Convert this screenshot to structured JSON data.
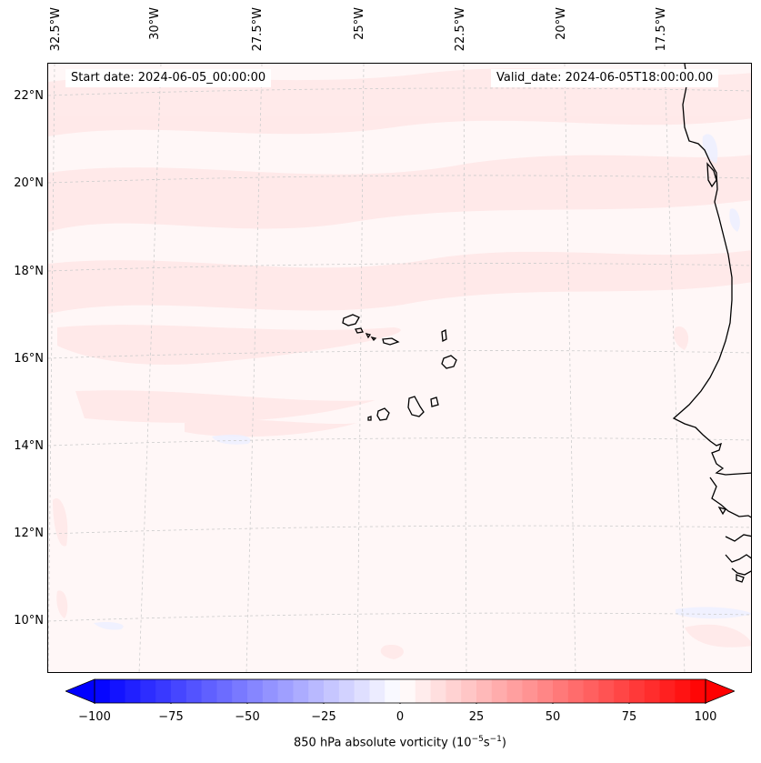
{
  "header": {
    "start_date": "Start date: 2024-06-05_00:00:00",
    "valid_date": "Valid_date: 2024-06-05T18:00:00.00"
  },
  "lat_labels": [
    "22°N",
    "20°N",
    "18°N",
    "16°N",
    "14°N",
    "12°N",
    "10°N"
  ],
  "lon_labels": [
    "32.5°W",
    "30°W",
    "27.5°W",
    "25°W",
    "22.5°W",
    "20°W",
    "17.5°W"
  ],
  "colorbar": {
    "ticks": [
      "−100",
      "−75",
      "−50",
      "−25",
      "0",
      "25",
      "50",
      "75",
      "100"
    ],
    "label_prefix": "850 hPa absolute vorticity (10",
    "label_exp1": "−5",
    "label_mid": "s",
    "label_exp2": "−1",
    "label_suffix": ")",
    "min": -100,
    "max": 100,
    "levels": 40,
    "colormap": "bwr",
    "extend": "both"
  },
  "colors": {
    "background_field": "#fff7f7",
    "land_outline": "#000000",
    "gridline": "#cccccc"
  }
}
